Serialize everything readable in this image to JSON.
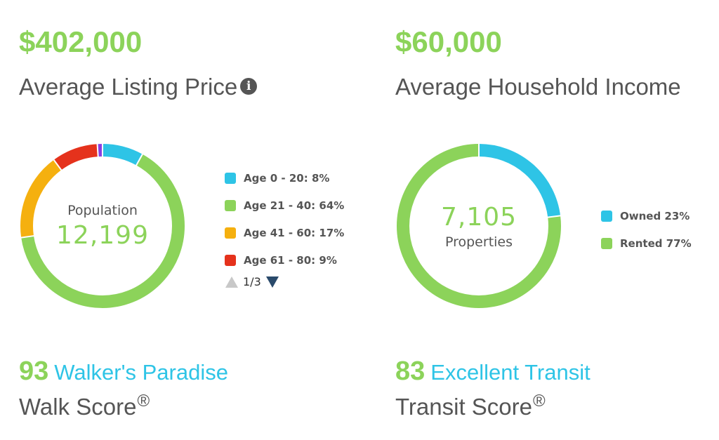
{
  "listing": {
    "value": "$402,000",
    "label": "Average Listing Price",
    "info_icon": "i"
  },
  "income": {
    "value": "$60,000",
    "label": "Average Household Income"
  },
  "population": {
    "center_label": "Population",
    "center_value": "12,199",
    "pager": {
      "text": "1/3",
      "up_icon": "triangle-up-icon",
      "down_icon": "triangle-down-icon"
    }
  },
  "properties": {
    "center_value": "7,105",
    "center_label": "Properties"
  },
  "walk": {
    "score": "93",
    "description": "Walker's Paradise",
    "label": "Walk Score",
    "mark": "®"
  },
  "transit": {
    "score": "83",
    "description": "Excellent Transit",
    "label": "Transit Score",
    "mark": "®"
  },
  "colors": {
    "accent_green": "#8cd35a",
    "link_blue": "#2ec4e6",
    "text_gray": "#555555"
  },
  "chart_data": [
    {
      "type": "pie",
      "categories": [
        "Age 0 - 20: 8%",
        "Age 21 - 40: 64%",
        "Age 41 - 60: 17%",
        "Age 61 - 80: 9%",
        ""
      ],
      "values": [
        8,
        64,
        17,
        9,
        1
      ],
      "colors": [
        "#2ec4e6",
        "#8cd35a",
        "#f5b00f",
        "#e5321c",
        "#8a3fe0"
      ],
      "legend_count": 4,
      "legend_position": "right"
    },
    {
      "type": "pie",
      "categories": [
        "Owned 23%",
        "Rented 77%"
      ],
      "values": [
        23,
        77
      ],
      "colors": [
        "#2ec4e6",
        "#8cd35a"
      ],
      "legend_count": 2,
      "legend_position": "right"
    }
  ]
}
